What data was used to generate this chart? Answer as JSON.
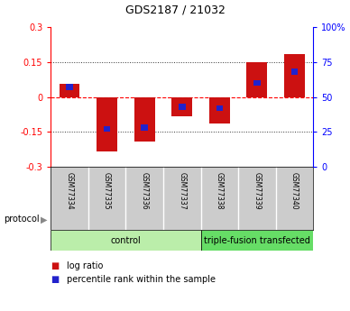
{
  "title": "GDS2187 / 21032",
  "samples": [
    "GSM77334",
    "GSM77335",
    "GSM77336",
    "GSM77337",
    "GSM77338",
    "GSM77339",
    "GSM77340"
  ],
  "log_ratio": [
    0.055,
    -0.235,
    -0.19,
    -0.082,
    -0.115,
    0.148,
    0.185
  ],
  "percentile": [
    57,
    27,
    28,
    43,
    42,
    60,
    68
  ],
  "ylim_left": [
    -0.3,
    0.3
  ],
  "ylim_right": [
    0,
    100
  ],
  "yticks_left": [
    -0.3,
    -0.15,
    0,
    0.15,
    0.3
  ],
  "ytick_labels_left": [
    "-0.3",
    "-0.15",
    "0",
    "0.15",
    "0.3"
  ],
  "yticks_right": [
    0,
    25,
    50,
    75,
    100
  ],
  "ytick_labels_right": [
    "0",
    "25",
    "50",
    "75",
    "100%"
  ],
  "hlines_dotted": [
    -0.15,
    0.15
  ],
  "bar_color_red": "#cc1111",
  "bar_color_blue": "#2222cc",
  "bar_width": 0.55,
  "blue_bar_width": 0.18,
  "blue_bar_height": 0.025,
  "groups": [
    {
      "label": "control",
      "indices": [
        0,
        1,
        2,
        3
      ],
      "color": "#bbeeaa"
    },
    {
      "label": "triple-fusion transfected",
      "indices": [
        4,
        5,
        6
      ],
      "color": "#66dd66"
    }
  ],
  "protocol_label": "protocol",
  "legend_items": [
    {
      "color": "#cc1111",
      "label": "log ratio"
    },
    {
      "color": "#2222cc",
      "label": "percentile rank within the sample"
    }
  ],
  "background_color": "#ffffff",
  "plot_bg": "#ffffff",
  "tick_label_bg": "#cccccc",
  "title_fontsize": 9,
  "tick_fontsize": 7,
  "sample_fontsize": 5.5,
  "group_fontsize": 7,
  "legend_fontsize": 7
}
